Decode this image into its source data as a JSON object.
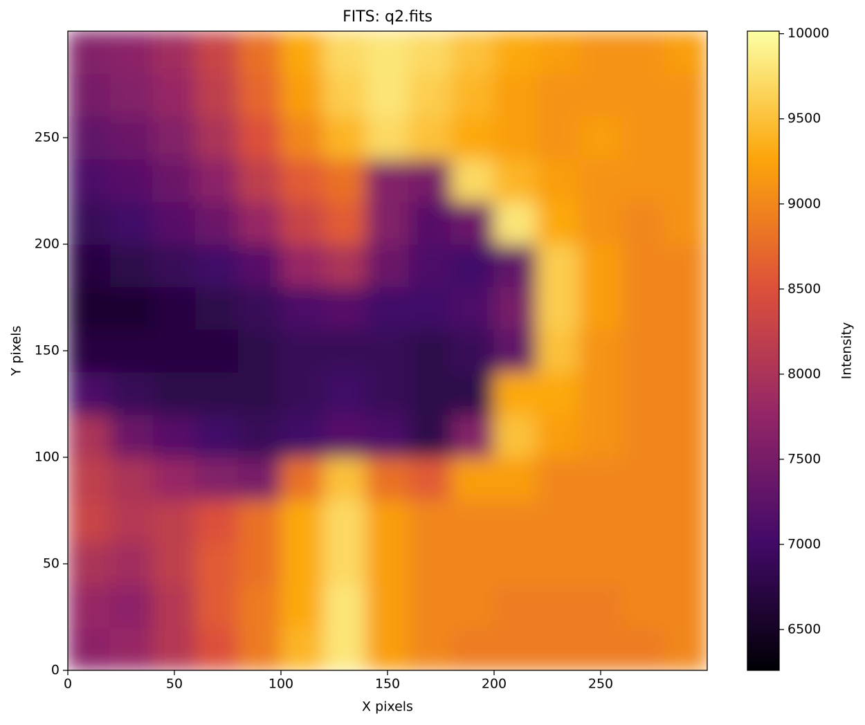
{
  "chart_data": {
    "type": "heatmap",
    "title": "FITS: q2.fits",
    "xlabel": "X pixels",
    "ylabel": "Y pixels",
    "colorbar_label": "Intensity",
    "xlim": [
      0,
      300
    ],
    "ylim": [
      0,
      300
    ],
    "xticks": [
      0,
      50,
      100,
      150,
      200,
      250
    ],
    "yticks": [
      0,
      50,
      100,
      150,
      200,
      250
    ],
    "xbins": [
      0,
      20,
      40,
      60,
      80,
      100,
      120,
      140,
      160,
      180,
      200,
      220,
      240,
      260,
      280,
      300
    ],
    "ybins": [
      0,
      20,
      40,
      60,
      80,
      100,
      120,
      140,
      160,
      180,
      200,
      220,
      240,
      260,
      280,
      300
    ],
    "clim": [
      6260,
      10015
    ],
    "colorbar_ticks": [
      6500,
      7000,
      7500,
      8000,
      8500,
      9000,
      9500,
      10000
    ],
    "colormap": [
      "#000004",
      "#420a68",
      "#932667",
      "#dd513a",
      "#fca50a",
      "#fcffa4"
    ],
    "values": [
      [
        7700,
        7800,
        8100,
        8500,
        8900,
        9400,
        9800,
        9200,
        9000,
        8900,
        8900,
        8900,
        8900,
        8900,
        9000
      ],
      [
        7800,
        7700,
        8100,
        8600,
        8900,
        9300,
        9800,
        9200,
        9000,
        9000,
        8900,
        8900,
        8900,
        9000,
        9000
      ],
      [
        8000,
        7900,
        8200,
        8600,
        8800,
        9300,
        9700,
        9200,
        9000,
        9000,
        9000,
        9000,
        9000,
        9000,
        9000
      ],
      [
        8300,
        8100,
        8200,
        8500,
        8800,
        9300,
        9700,
        9200,
        9000,
        9000,
        9000,
        9000,
        9000,
        9000,
        9000
      ],
      [
        8200,
        8000,
        7800,
        7600,
        7500,
        8800,
        9500,
        8800,
        8600,
        9200,
        9200,
        9000,
        9000,
        9000,
        9000
      ],
      [
        8000,
        7400,
        7200,
        7000,
        6900,
        7000,
        7200,
        7100,
        6800,
        7600,
        9500,
        9200,
        9100,
        9000,
        9000
      ],
      [
        7100,
        6900,
        6800,
        6800,
        6800,
        6900,
        7000,
        6900,
        6800,
        6800,
        9300,
        9300,
        9100,
        9000,
        9000
      ],
      [
        6700,
        6700,
        6700,
        6700,
        6800,
        6900,
        6900,
        6900,
        6800,
        6900,
        7300,
        9500,
        9100,
        9000,
        9000
      ],
      [
        6600,
        6600,
        6700,
        6800,
        6900,
        7100,
        7200,
        7000,
        7000,
        7100,
        7500,
        9600,
        9200,
        9000,
        9000
      ],
      [
        6700,
        6800,
        6900,
        7000,
        7200,
        7800,
        8000,
        7400,
        7100,
        7000,
        7300,
        9600,
        9200,
        9000,
        9000
      ],
      [
        6900,
        7000,
        7200,
        7400,
        7800,
        8300,
        8600,
        7600,
        7200,
        7400,
        9800,
        9300,
        9100,
        9000,
        9100
      ],
      [
        7100,
        7200,
        7400,
        7700,
        8200,
        8600,
        8800,
        7600,
        7500,
        9700,
        9400,
        9200,
        9100,
        9100,
        9100
      ],
      [
        7300,
        7400,
        7600,
        8000,
        8500,
        9000,
        9400,
        9700,
        9500,
        9300,
        9200,
        9100,
        9200,
        9100,
        9100
      ],
      [
        7500,
        7600,
        7800,
        8200,
        8700,
        9200,
        9600,
        9800,
        9600,
        9400,
        9200,
        9100,
        9100,
        9100,
        9100
      ],
      [
        7600,
        7700,
        7900,
        8300,
        8800,
        9300,
        9700,
        9800,
        9700,
        9500,
        9300,
        9200,
        9100,
        9100,
        9200
      ]
    ]
  }
}
